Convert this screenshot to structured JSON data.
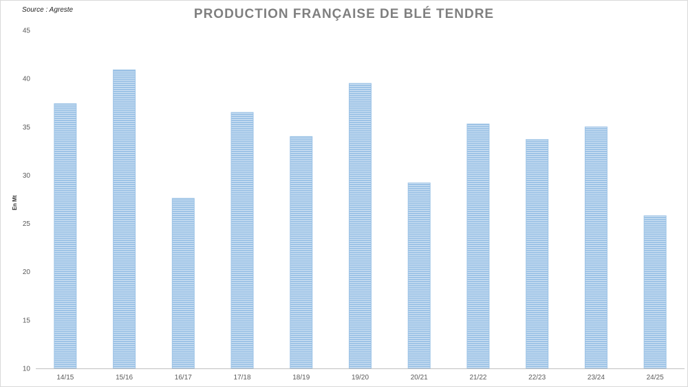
{
  "source": "Source : Agreste",
  "chart_data": {
    "type": "bar",
    "title": "PRODUCTION FRANÇAISE DE BLÉ TENDRE",
    "xlabel": "",
    "ylabel": "En Mt",
    "categories": [
      "14/15",
      "15/16",
      "16/17",
      "17/18",
      "18/19",
      "19/20",
      "20/21",
      "21/22",
      "22/23",
      "23/24",
      "24/25"
    ],
    "values": [
      37.4,
      40.9,
      27.6,
      36.5,
      34.0,
      39.5,
      29.2,
      35.3,
      33.7,
      35.0,
      25.8
    ],
    "ylim": [
      10,
      45
    ],
    "yticks": [
      10,
      15,
      20,
      25,
      30,
      35,
      40,
      45
    ],
    "grid": false,
    "legend": "none",
    "bar_color": "#9dc3e6",
    "bar_stripe_color": "#ffffff",
    "axis_color": "#bfbfbf"
  }
}
